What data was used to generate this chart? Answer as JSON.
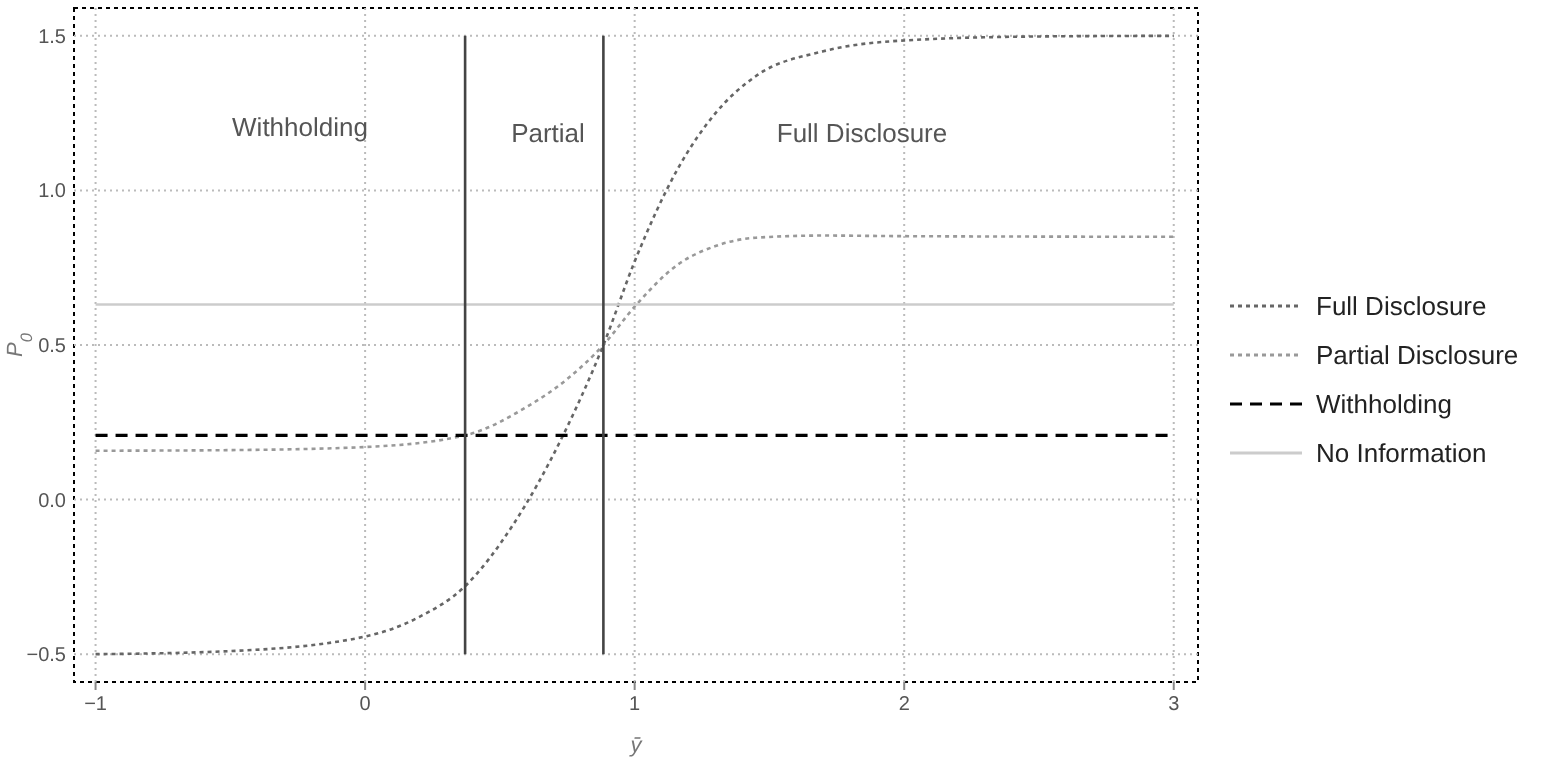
{
  "chart_data": {
    "type": "line",
    "xlabel": "ȳ",
    "ylabel": "P$_{0}$",
    "xlim": [
      -1.08,
      3.09
    ],
    "ylim": [
      -0.59,
      1.59
    ],
    "xticks": [
      {
        "value": -1,
        "label": "−1"
      },
      0,
      1,
      2,
      3
    ],
    "yticks": [
      {
        "value": -0.5,
        "label": "−0.5"
      },
      {
        "value": 0,
        "label": "0.0"
      },
      0.5,
      {
        "value": 1,
        "label": "1.0"
      },
      1.5
    ],
    "grid": true,
    "legend": "right",
    "marker": "none",
    "series": [
      {
        "name": "Full Disclosure",
        "color": "#666666",
        "line_style": "dotted",
        "x": [
          -1,
          -0.5,
          0,
          0.2,
          0.371,
          0.55,
          0.73,
          0.884,
          1,
          1.16,
          1.3,
          1.45,
          1.7,
          2,
          2.5,
          3
        ],
        "values": [
          -0.5,
          -0.49,
          -0.443,
          -0.38,
          -0.28,
          -0.08,
          0.2,
          0.5,
          0.77,
          1.07,
          1.25,
          1.37,
          1.45,
          1.485,
          1.498,
          1.5
        ]
      },
      {
        "name": "Partial Disclosure",
        "color": "#999999",
        "line_style": "dotted",
        "x": [
          -1,
          -0.5,
          0,
          0.371,
          0.6,
          0.75,
          0.884,
          1,
          1.16,
          1.3,
          1.45,
          1.7,
          2,
          3
        ],
        "values": [
          0.158,
          0.16,
          0.17,
          0.208,
          0.3,
          0.39,
          0.5,
          0.624,
          0.76,
          0.82,
          0.847,
          0.854,
          0.852,
          0.85
        ]
      },
      {
        "name": "Withholding",
        "color": "#000000",
        "line_style": "dashed",
        "x": [
          -1,
          3
        ],
        "values": [
          0.208,
          0.208
        ]
      },
      {
        "name": "No Information",
        "color": "#cccccc",
        "line_style": "solid",
        "x": [
          -1,
          3
        ],
        "values": [
          0.631,
          0.631
        ]
      },
      {
        "type": "line",
        "color": "#444444",
        "line_style": "solid",
        "x": [
          0.371,
          0.371
        ],
        "values": [
          -0.5,
          1.5
        ]
      },
      {
        "type": "line",
        "color": "#444444",
        "line_style": "solid",
        "x": [
          0.884,
          0.884
        ],
        "values": [
          -0.5,
          1.5
        ]
      }
    ],
    "annotations": [
      "Withholding",
      "Partial",
      "Full Disclosure"
    ]
  }
}
